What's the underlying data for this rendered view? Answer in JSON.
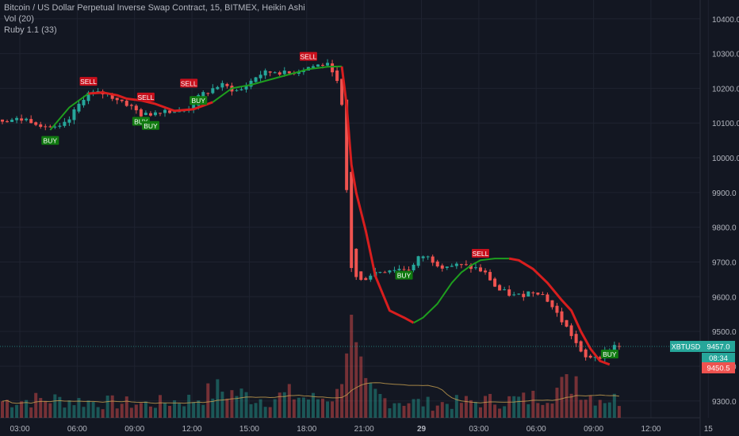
{
  "legend": {
    "title": "Bitcoin / US Dollar Perpetual Inverse Swap Contract, 15, BITMEX, Heikin Ashi",
    "volume": "Vol (20)",
    "indicator": "Ruby 1.1 (33)"
  },
  "colors": {
    "background": "#131722",
    "grid": "#1f2330",
    "up": "#26a69a",
    "down": "#ef5350",
    "trend_up": "#1e9e1e",
    "trend_down": "#d81e1e",
    "text": "#b2b5be"
  },
  "price_badges": {
    "symbol": "XBTUSD",
    "last_price": "9457.0",
    "countdown": "08:34",
    "other_price": "9450.5"
  },
  "chart_data": {
    "type": "candlestick",
    "style": "Heikin Ashi",
    "timeframe": "15",
    "grid": true,
    "x_ticks": [
      "03:00",
      "06:00",
      "09:00",
      "12:00",
      "15:00",
      "18:00",
      "21:00",
      "29",
      "03:00",
      "06:00",
      "09:00",
      "12:00",
      "15"
    ],
    "y_ticks": [
      9300,
      9400,
      9500,
      9600,
      9700,
      9800,
      9900,
      10000,
      10100,
      10200,
      10300,
      10400
    ],
    "y_tick_labels": [
      "9300.0",
      "9400.0",
      "9500.0",
      "9600.0",
      "9700.0",
      "9800.0",
      "9900.0",
      "10000.0",
      "10100.0",
      "10200.0",
      "10300.0",
      "10400.0"
    ],
    "ylim": [
      9250,
      10450
    ],
    "price_anchors": [
      [
        0,
        10110
      ],
      [
        6,
        10110
      ],
      [
        10,
        10090
      ],
      [
        12,
        10080
      ],
      [
        14,
        10100
      ],
      [
        18,
        10185
      ],
      [
        22,
        10185
      ],
      [
        26,
        10160
      ],
      [
        30,
        10120
      ],
      [
        34,
        10140
      ],
      [
        38,
        10130
      ],
      [
        40,
        10150
      ],
      [
        42,
        10180
      ],
      [
        46,
        10210
      ],
      [
        50,
        10190
      ],
      [
        54,
        10240
      ],
      [
        58,
        10250
      ],
      [
        60,
        10240
      ],
      [
        64,
        10260
      ],
      [
        68,
        10270
      ],
      [
        70,
        10250
      ],
      [
        72,
        10110
      ],
      [
        73,
        9700
      ],
      [
        75,
        9640
      ],
      [
        78,
        9670
      ],
      [
        82,
        9680
      ],
      [
        86,
        9680
      ],
      [
        88,
        9720
      ],
      [
        90,
        9710
      ],
      [
        92,
        9690
      ],
      [
        96,
        9690
      ],
      [
        100,
        9680
      ],
      [
        102,
        9660
      ],
      [
        104,
        9620
      ],
      [
        108,
        9600
      ],
      [
        112,
        9620
      ],
      [
        114,
        9600
      ],
      [
        116,
        9560
      ],
      [
        118,
        9520
      ],
      [
        120,
        9480
      ],
      [
        122,
        9420
      ],
      [
        124,
        9430
      ],
      [
        126,
        9430
      ],
      [
        128,
        9460
      ]
    ],
    "volume_anchors": [
      [
        0,
        0.18
      ],
      [
        10,
        0.2
      ],
      [
        20,
        0.17
      ],
      [
        30,
        0.15
      ],
      [
        40,
        0.2
      ],
      [
        45,
        0.3
      ],
      [
        55,
        0.2
      ],
      [
        60,
        0.25
      ],
      [
        65,
        0.2
      ],
      [
        70,
        0.25
      ],
      [
        72,
        0.9
      ],
      [
        73,
        1.0
      ],
      [
        74,
        0.6
      ],
      [
        76,
        0.3
      ],
      [
        80,
        0.2
      ],
      [
        90,
        0.15
      ],
      [
        100,
        0.18
      ],
      [
        110,
        0.2
      ],
      [
        118,
        0.35
      ],
      [
        120,
        0.45
      ],
      [
        122,
        0.25
      ],
      [
        128,
        0.2
      ]
    ],
    "trend_line": [
      [
        10,
        10080
      ],
      [
        14,
        10145
      ],
      [
        18,
        10185
      ],
      [
        21,
        10188
      ],
      [
        24,
        10180
      ],
      [
        26,
        10170
      ],
      [
        29,
        10165
      ],
      [
        32,
        10155
      ],
      [
        36,
        10135
      ],
      [
        40,
        10140
      ],
      [
        44,
        10160
      ],
      [
        48,
        10200
      ],
      [
        52,
        10210
      ],
      [
        56,
        10225
      ],
      [
        60,
        10240
      ],
      [
        64,
        10255
      ],
      [
        68,
        10262
      ],
      [
        71,
        10263
      ],
      [
        72,
        10150
      ],
      [
        73,
        9980
      ],
      [
        74,
        9900
      ],
      [
        76,
        9790
      ],
      [
        78,
        9660
      ],
      [
        81,
        9560
      ],
      [
        84,
        9540
      ],
      [
        86,
        9525
      ],
      [
        88,
        9540
      ],
      [
        91,
        9580
      ],
      [
        94,
        9640
      ],
      [
        96,
        9670
      ],
      [
        98,
        9690
      ],
      [
        100,
        9705
      ],
      [
        103,
        9710
      ],
      [
        106,
        9710
      ],
      [
        108,
        9705
      ],
      [
        111,
        9680
      ],
      [
        114,
        9640
      ],
      [
        117,
        9590
      ],
      [
        119,
        9560
      ],
      [
        121,
        9500
      ],
      [
        123,
        9450
      ],
      [
        125,
        9415
      ],
      [
        127,
        9405
      ]
    ],
    "trend_breaks": [
      {
        "from": 0,
        "to": 18,
        "direction": "up"
      },
      {
        "from": 18,
        "to": 44,
        "direction": "down"
      },
      {
        "from": 44,
        "to": 71,
        "direction": "up"
      },
      {
        "from": 71,
        "to": 86,
        "direction": "down"
      },
      {
        "from": 86,
        "to": 106,
        "direction": "up"
      },
      {
        "from": 106,
        "to": 127,
        "direction": "down"
      }
    ],
    "signals": [
      {
        "label": "BUY",
        "bar": 10,
        "price": 10050
      },
      {
        "label": "SELL",
        "bar": 18,
        "price": 10220
      },
      {
        "label": "SELL",
        "bar": 30,
        "price": 10175
      },
      {
        "label": "BUY",
        "bar": 29,
        "price": 10105
      },
      {
        "label": "BUY",
        "bar": 31,
        "price": 10093
      },
      {
        "label": "SELL",
        "bar": 39,
        "price": 10215
      },
      {
        "label": "BUY",
        "bar": 41,
        "price": 10165
      },
      {
        "label": "SELL",
        "bar": 64,
        "price": 10292
      },
      {
        "label": "BUY",
        "bar": 84,
        "price": 9662
      },
      {
        "label": "SELL",
        "bar": 100,
        "price": 9725
      },
      {
        "label": "BUY",
        "bar": 127,
        "price": 9435
      }
    ]
  }
}
